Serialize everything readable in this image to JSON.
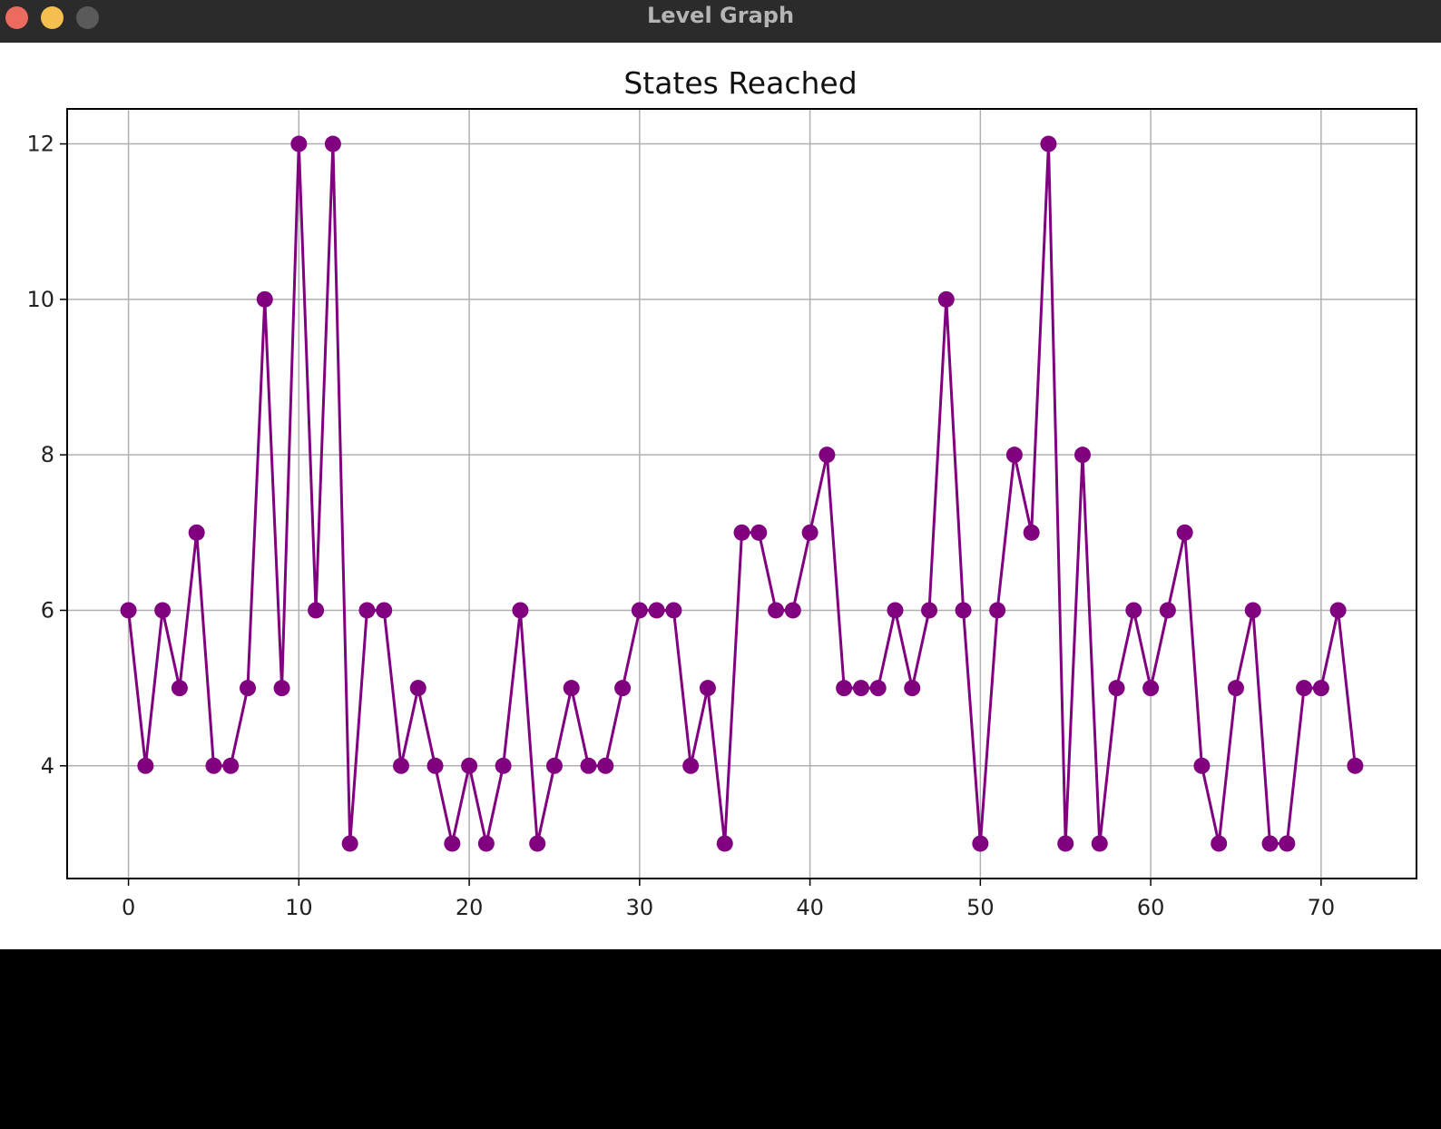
{
  "window": {
    "title": "Level Graph",
    "buttons": [
      {
        "name": "close",
        "color": "#ec6a5e"
      },
      {
        "name": "minimize",
        "color": "#f4bf4f"
      },
      {
        "name": "zoom",
        "color": "#5a5a5a"
      }
    ]
  },
  "chart_data": {
    "type": "line",
    "title": "States Reached",
    "xlabel": "",
    "ylabel": "",
    "xlim": [
      -3.6,
      75.6
    ],
    "ylim": [
      2.55,
      12.45
    ],
    "xticks": [
      0,
      10,
      20,
      30,
      40,
      50,
      60,
      70
    ],
    "yticks": [
      4,
      6,
      8,
      10,
      12
    ],
    "grid": true,
    "line_color": "#800080",
    "series": [
      {
        "x": [
          0,
          1,
          2,
          3,
          4,
          5,
          6,
          7,
          8,
          9,
          10,
          11,
          12,
          13,
          14,
          15,
          16,
          17,
          18,
          19,
          20,
          21,
          22,
          23,
          24,
          25,
          26,
          27,
          28,
          29,
          30,
          31,
          32,
          33,
          34,
          35,
          36,
          37,
          38,
          39,
          40,
          41,
          42,
          43,
          44,
          45,
          46,
          47,
          48,
          49,
          50,
          51,
          52,
          53,
          54,
          55,
          56,
          57,
          58,
          59,
          60,
          61,
          62,
          63,
          64,
          65,
          66,
          67,
          68,
          69,
          70,
          71,
          72
        ],
        "values": [
          6,
          4,
          6,
          5,
          7,
          4,
          4,
          5,
          10,
          5,
          12,
          6,
          12,
          3,
          6,
          6,
          4,
          5,
          4,
          3,
          4,
          3,
          4,
          6,
          3,
          4,
          5,
          4,
          4,
          5,
          6,
          6,
          6,
          4,
          5,
          3,
          7,
          7,
          6,
          6,
          7,
          8,
          5,
          5,
          5,
          6,
          5,
          6,
          10,
          6,
          3,
          6,
          8,
          7,
          12,
          3,
          8,
          3,
          5,
          6,
          5,
          6,
          7,
          4,
          3,
          5,
          6,
          3,
          3,
          5,
          5,
          6,
          4
        ]
      }
    ]
  }
}
